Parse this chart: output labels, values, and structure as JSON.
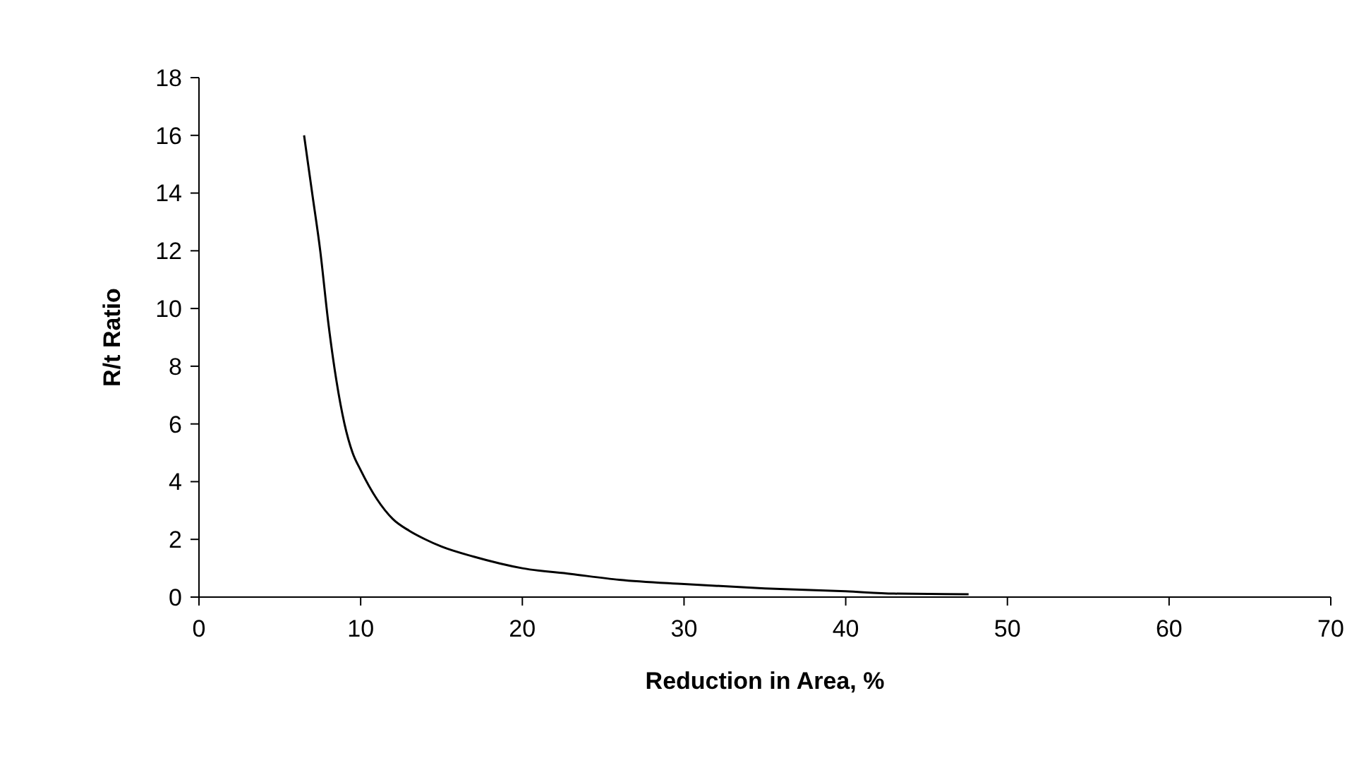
{
  "chart_data": {
    "type": "line",
    "xlabel": "Reduction in Area, %",
    "ylabel": "R/t Ratio",
    "x": [
      6.5,
      7,
      7.5,
      8,
      8.5,
      9,
      9.5,
      10,
      11,
      12,
      13,
      14,
      15,
      17,
      20,
      23,
      26,
      30,
      35,
      40,
      43,
      47.6
    ],
    "series": [
      {
        "color": "#000000",
        "values": [
          16,
          14,
          12,
          9.5,
          7.5,
          6,
          5,
          4.4,
          3.4,
          2.7,
          2.3,
          2,
          1.75,
          1.4,
          1,
          0.8,
          0.6,
          0.45,
          0.3,
          0.2,
          0.12,
          0.1
        ]
      }
    ],
    "xlim": [
      0,
      70
    ],
    "xticks": [
      0,
      10,
      20,
      30,
      40,
      50,
      60,
      70
    ],
    "ylim": [
      0,
      18
    ],
    "yticks": [
      0,
      2,
      4,
      6,
      8,
      10,
      12,
      14,
      16,
      18
    ],
    "grid": false,
    "marker": "none",
    "line_style": "solid"
  }
}
